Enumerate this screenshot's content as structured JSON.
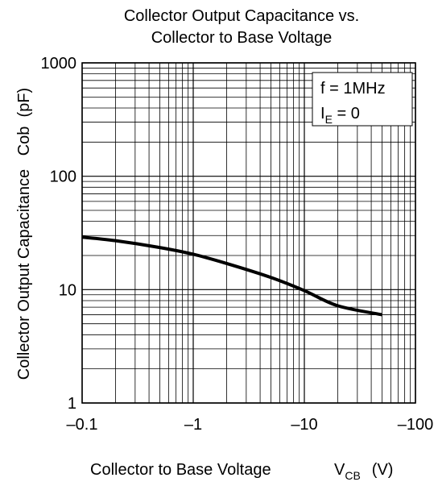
{
  "chart_data": {
    "type": "line",
    "title_lines": [
      "Collector Output Capacitance vs.",
      "Collector to Base Voltage"
    ],
    "xlabel": "Collector to Base Voltage",
    "xlabel_symbol": {
      "main": "V",
      "sub": "CB",
      "unit": "(V)"
    },
    "ylabel": "Collector Output Capacitance   Cob  (pF)",
    "x_scale": "log",
    "y_scale": "log",
    "xlim": [
      -0.1,
      -100
    ],
    "ylim": [
      1,
      1000
    ],
    "x_ticks": [
      {
        "value": -0.1,
        "label": "–0.1"
      },
      {
        "value": -1,
        "label": "–1"
      },
      {
        "value": -10,
        "label": "–10"
      },
      {
        "value": -100,
        "label": "–100"
      }
    ],
    "y_ticks": [
      {
        "value": 1,
        "label": "1"
      },
      {
        "value": 10,
        "label": "10"
      },
      {
        "value": 100,
        "label": "100"
      },
      {
        "value": 1000,
        "label": "1000"
      }
    ],
    "grid": true,
    "legend": {
      "placement": "top-right",
      "line1": "f = 1MHz",
      "line2": {
        "main": "I",
        "sub": "E",
        "rest": " = 0"
      }
    },
    "series": [
      {
        "x": [
          -0.1,
          -0.2,
          -0.5,
          -1,
          -2,
          -5,
          -10,
          -20,
          -50
        ],
        "y": [
          29,
          27,
          23.5,
          20.5,
          17,
          12.8,
          9.8,
          7.2,
          6
        ],
        "color": "#000000"
      }
    ]
  }
}
